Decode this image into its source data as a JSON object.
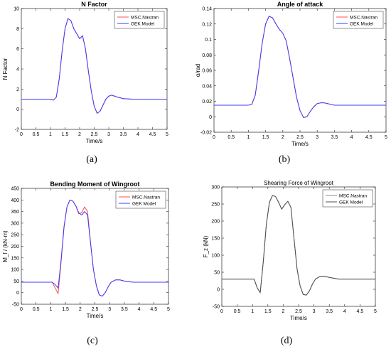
{
  "chart_data": [
    {
      "type": "line",
      "panel": "(a)",
      "title": "N Factor",
      "xlabel": "Time/s",
      "ylabel": "N Factor",
      "xlim": [
        0,
        5
      ],
      "ylim": [
        -2,
        10
      ],
      "xticks": [
        "0",
        "0.5",
        "1",
        "1.5",
        "2",
        "2.5",
        "3",
        "3.5",
        "4",
        "4.5",
        "5"
      ],
      "yticks": [
        "-2",
        "0",
        "2",
        "4",
        "6",
        "8",
        "10"
      ],
      "legend": "top-right",
      "grid": false,
      "series": [
        {
          "name": "MSC.Nastran",
          "color": "#ff4d4d",
          "x": [
            0,
            1.0,
            1.1,
            1.2,
            1.3,
            1.4,
            1.5,
            1.6,
            1.7,
            1.8,
            1.9,
            2.0,
            2.1,
            2.2,
            2.3,
            2.4,
            2.5,
            2.6,
            2.7,
            2.8,
            2.9,
            3.0,
            3.1,
            3.2,
            3.3,
            3.5,
            3.8,
            4.2,
            5.0
          ],
          "y": [
            1.0,
            1.0,
            0.9,
            1.2,
            3.0,
            5.8,
            8.0,
            9.0,
            8.8,
            8.0,
            7.5,
            7.0,
            7.3,
            6.0,
            3.8,
            1.8,
            0.3,
            -0.4,
            -0.2,
            0.4,
            1.0,
            1.3,
            1.4,
            1.3,
            1.2,
            1.05,
            1.0,
            1.0,
            1.0
          ]
        },
        {
          "name": "GEK Model",
          "color": "#3c3cff",
          "x": [
            0,
            1.0,
            1.1,
            1.2,
            1.3,
            1.4,
            1.5,
            1.6,
            1.7,
            1.8,
            1.9,
            2.0,
            2.1,
            2.2,
            2.3,
            2.4,
            2.5,
            2.6,
            2.7,
            2.8,
            2.9,
            3.0,
            3.1,
            3.2,
            3.3,
            3.5,
            3.8,
            4.2,
            5.0
          ],
          "y": [
            1.0,
            1.0,
            0.9,
            1.2,
            3.0,
            5.8,
            8.0,
            9.0,
            8.8,
            8.0,
            7.5,
            7.0,
            7.3,
            6.0,
            3.8,
            1.8,
            0.3,
            -0.4,
            -0.2,
            0.4,
            1.0,
            1.3,
            1.4,
            1.3,
            1.2,
            1.05,
            1.0,
            1.0,
            1.0
          ]
        }
      ]
    },
    {
      "type": "line",
      "panel": "(b)",
      "title": "Angle of attack",
      "xlabel": "Time/s",
      "ylabel": "α/rad",
      "xlim": [
        0,
        5
      ],
      "ylim": [
        -0.02,
        0.14
      ],
      "xticks": [
        "0",
        "0.5",
        "1",
        "1.5",
        "2",
        "2.5",
        "3",
        "3.5",
        "4",
        "4.5",
        "5"
      ],
      "yticks": [
        "-0.02",
        "0",
        "0.02",
        "0.04",
        "0.06",
        "0.08",
        "0.1",
        "0.12",
        "0.14"
      ],
      "legend": "top-right",
      "grid": false,
      "series": [
        {
          "name": "MSC.Nastran",
          "color": "#ff4d4d",
          "x": [
            0,
            1.0,
            1.1,
            1.2,
            1.3,
            1.4,
            1.5,
            1.6,
            1.7,
            1.8,
            1.9,
            2.0,
            2.1,
            2.2,
            2.3,
            2.4,
            2.5,
            2.6,
            2.7,
            2.8,
            2.9,
            3.0,
            3.1,
            3.2,
            3.3,
            3.5,
            3.8,
            4.2,
            5.0
          ],
          "y": [
            0.015,
            0.015,
            0.016,
            0.028,
            0.06,
            0.095,
            0.12,
            0.13,
            0.128,
            0.12,
            0.113,
            0.108,
            0.098,
            0.075,
            0.05,
            0.025,
            0.008,
            -0.001,
            0.0,
            0.007,
            0.013,
            0.017,
            0.018,
            0.018,
            0.017,
            0.015,
            0.015,
            0.015,
            0.015
          ]
        },
        {
          "name": "GEK Model",
          "color": "#3c3cff",
          "x": [
            0,
            1.0,
            1.1,
            1.2,
            1.3,
            1.4,
            1.5,
            1.6,
            1.7,
            1.8,
            1.9,
            2.0,
            2.1,
            2.2,
            2.3,
            2.4,
            2.5,
            2.6,
            2.7,
            2.8,
            2.9,
            3.0,
            3.1,
            3.2,
            3.3,
            3.5,
            3.8,
            4.2,
            5.0
          ],
          "y": [
            0.015,
            0.015,
            0.016,
            0.028,
            0.06,
            0.095,
            0.12,
            0.13,
            0.128,
            0.12,
            0.113,
            0.108,
            0.098,
            0.075,
            0.05,
            0.025,
            0.008,
            -0.001,
            0.0,
            0.007,
            0.013,
            0.017,
            0.018,
            0.018,
            0.017,
            0.015,
            0.015,
            0.015,
            0.015
          ]
        }
      ]
    },
    {
      "type": "line",
      "panel": "(c)",
      "title": "Bending Moment of Wingroot",
      "xlabel": "Time/s",
      "ylabel": "M_f / (kN·m)",
      "xlim": [
        0,
        5
      ],
      "ylim": [
        -50,
        450
      ],
      "xticks": [
        "0",
        "0.5",
        "1",
        "1.5",
        "2",
        "2.5",
        "3",
        "3.5",
        "4",
        "4.5",
        "5"
      ],
      "yticks": [
        "-50",
        "0",
        "50",
        "100",
        "150",
        "200",
        "250",
        "300",
        "350",
        "400",
        "450"
      ],
      "legend": "top-right",
      "grid": false,
      "series": [
        {
          "name": "MSC.Nastran",
          "color": "#ff4d4d",
          "x": [
            0,
            1.05,
            1.15,
            1.25,
            1.35,
            1.45,
            1.55,
            1.65,
            1.75,
            1.85,
            1.95,
            2.05,
            2.15,
            2.25,
            2.35,
            2.45,
            2.55,
            2.65,
            2.75,
            2.85,
            2.95,
            3.05,
            3.2,
            3.35,
            3.5,
            3.8,
            4.2,
            5.0
          ],
          "y": [
            45,
            45,
            20,
            -5,
            130,
            280,
            370,
            400,
            395,
            375,
            340,
            345,
            370,
            350,
            220,
            100,
            30,
            -10,
            -15,
            0,
            25,
            45,
            55,
            55,
            50,
            45,
            45,
            45
          ]
        },
        {
          "name": "GEK Model",
          "color": "#3c3cff",
          "x": [
            0,
            1.05,
            1.15,
            1.25,
            1.35,
            1.45,
            1.55,
            1.65,
            1.75,
            1.85,
            1.95,
            2.05,
            2.15,
            2.25,
            2.35,
            2.45,
            2.55,
            2.65,
            2.75,
            2.85,
            2.95,
            3.05,
            3.2,
            3.35,
            3.5,
            3.8,
            4.2,
            5.0
          ],
          "y": [
            45,
            45,
            35,
            20,
            140,
            285,
            370,
            400,
            395,
            375,
            345,
            335,
            350,
            335,
            215,
            100,
            30,
            -10,
            -15,
            0,
            25,
            45,
            55,
            55,
            50,
            45,
            45,
            45
          ]
        }
      ]
    },
    {
      "type": "line",
      "panel": "(d)",
      "title": "Shearing Force of Wingroot",
      "xlabel": "Time/s",
      "ylabel": "F_z (kN)",
      "xlim": [
        0,
        5
      ],
      "ylim": [
        -50,
        300
      ],
      "xticks": [
        "0",
        "0.5",
        "1",
        "1.5",
        "2",
        "2.5",
        "3",
        "3.5",
        "4",
        "4.5",
        "5"
      ],
      "yticks": [
        "-50",
        "0",
        "50",
        "100",
        "150",
        "200",
        "250",
        "300"
      ],
      "legend": "top-right",
      "grid": false,
      "series": [
        {
          "name": "MSC.Nastran",
          "color": "#8c8c8c",
          "x": [
            0,
            1.05,
            1.15,
            1.25,
            1.35,
            1.45,
            1.55,
            1.65,
            1.75,
            1.85,
            1.95,
            2.05,
            2.15,
            2.25,
            2.35,
            2.45,
            2.55,
            2.65,
            2.75,
            2.85,
            2.95,
            3.05,
            3.2,
            3.35,
            3.5,
            3.8,
            4.2,
            5.0
          ],
          "y": [
            30,
            30,
            5,
            -10,
            80,
            190,
            255,
            275,
            272,
            255,
            235,
            248,
            258,
            240,
            150,
            60,
            10,
            -15,
            -17,
            -5,
            15,
            30,
            38,
            38,
            35,
            30,
            30,
            30
          ]
        },
        {
          "name": "GEK Model",
          "color": "#4d4d4d",
          "x": [
            0,
            1.05,
            1.15,
            1.25,
            1.35,
            1.45,
            1.55,
            1.65,
            1.75,
            1.85,
            1.95,
            2.05,
            2.15,
            2.25,
            2.35,
            2.45,
            2.55,
            2.65,
            2.75,
            2.85,
            2.95,
            3.05,
            3.2,
            3.35,
            3.5,
            3.8,
            4.2,
            5.0
          ],
          "y": [
            30,
            30,
            5,
            -10,
            80,
            190,
            255,
            275,
            272,
            255,
            235,
            248,
            258,
            240,
            150,
            60,
            10,
            -15,
            -17,
            -5,
            15,
            30,
            38,
            38,
            35,
            30,
            30,
            30
          ]
        }
      ]
    }
  ]
}
